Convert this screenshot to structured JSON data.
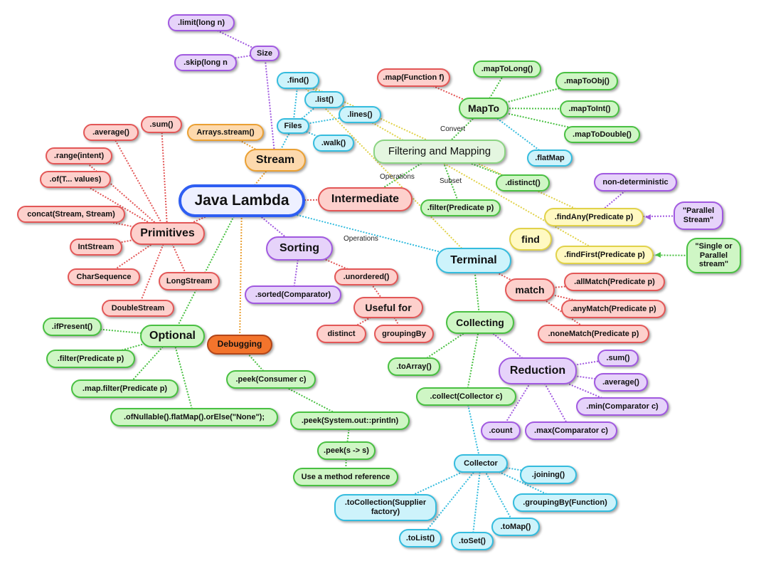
{
  "central": "Java Lambda",
  "nodes": {
    "stream": "Stream",
    "size": "Size",
    "limit": ".limit(long n)",
    "skip": ".skip(long n",
    "arrays_stream": "Arrays.stream()",
    "files": "Files",
    "find_m": ".find()",
    "list": ".list()",
    "lines": ".lines()",
    "walk": ".walk()",
    "primitives": "Primitives",
    "sum_p": ".sum()",
    "average_p": ".average()",
    "range": ".range(intent)",
    "of": ".of(T... values)",
    "concat": "concat(Stream, Stream)",
    "intstream": "IntStream",
    "charsequence": "CharSequence",
    "longstream": "LongStream",
    "doublestream": "DoubleStream",
    "intermediate": "Intermediate",
    "filtering_mapping": "Filtering and Mapping",
    "mapto": "MapTo",
    "map_function": ".map(Function f)",
    "maptolong": ".mapToLong()",
    "maptoobj": ".mapToObj()",
    "maptoint": ".mapToInt()",
    "maptodouble": ".mapToDouble()",
    "flatmap": ".flatMap",
    "distinct_m": ".distinct()",
    "filter_pred": ".filter(Predicate p)",
    "sorting": "Sorting",
    "sorted": ".sorted(Comparator)",
    "unordered": ".unordered()",
    "useful_for": "Useful for",
    "distinct_u": "distinct",
    "groupingby_u": "groupingBy",
    "terminal": "Terminal",
    "find": "find",
    "findany": ".findAny(Predicate p)",
    "findfirst": ".findFirst(Predicate p)",
    "non_deterministic": "non-deterministic",
    "parallel_stream": "\"Parallel Stream\"",
    "single_parallel": "\"Single or Parallel stream\"",
    "match": "match",
    "allmatch": ".allMatch(Predicate p)",
    "anymatch": ".anyMatch(Predicate p)",
    "nonematch": ".noneMatch(Predicate p)",
    "collecting": "Collecting",
    "toarray": ".toArray()",
    "collect": ".collect(Collector c)",
    "reduction": "Reduction",
    "sum_r": ".sum()",
    "average_r": ".average()",
    "min": ".min(Comparator c)",
    "max": ".max(Comparator c)",
    "count": ".count",
    "collector": "Collector",
    "joining": ".joining()",
    "groupingby_f": ".groupingBy(Function)",
    "tomap": ".toMap()",
    "toset": ".toSet()",
    "tolist": ".toList()",
    "tocollection": ".toCollection(Supplier factory)",
    "optional": "Optional",
    "ifpresent": ".ifPresent()",
    "filter_opt": ".filter(Predicate p)",
    "map_filter": ".map.filter(Predicate p)",
    "ofnullable": ".ofNullable().flatMap().orElse(\"None\");",
    "debugging": "Debugging",
    "peek_consumer": ".peek(Consumer c)",
    "peek_sysout": ".peek(System.out::println)",
    "peek_s": ".peek(s -> s)",
    "method_ref": "Use a method reference"
  },
  "edge_labels": {
    "convert": "Convert",
    "operations_inter": "Operations",
    "subset": "Subset",
    "operations_term": "Operations"
  },
  "colors": {
    "pink_border": "#e35757",
    "purple_border": "#a159e0",
    "green_border": "#49c042",
    "cyan_border": "#34bcde",
    "orange_border": "#eaa033",
    "yellow_border": "#e1d24a",
    "central_border": "#2e5ef2"
  }
}
